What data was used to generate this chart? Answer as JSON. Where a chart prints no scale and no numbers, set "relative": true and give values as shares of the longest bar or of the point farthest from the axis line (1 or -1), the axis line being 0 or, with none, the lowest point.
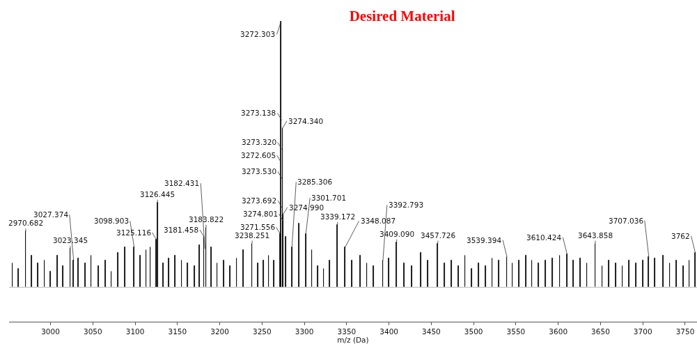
{
  "chart_data": {
    "type": "bar",
    "title": "Desired Material",
    "xlabel": "m/z (Da)",
    "relative": true,
    "color": "#000000",
    "x": [
      2955,
      2962,
      2970.682,
      2978,
      2985,
      2993,
      3000,
      3008,
      3015,
      3023.345,
      3027.374,
      3033,
      3041,
      3048,
      3057,
      3065,
      3072,
      3080,
      3088,
      3098.903,
      3106,
      3113,
      3118,
      3125.116,
      3126.445,
      3133,
      3140,
      3147,
      3155,
      3162,
      3170,
      3176,
      3181.458,
      3182.431,
      3183.822,
      3190,
      3197,
      3205,
      3212,
      3220,
      3228,
      3238.251,
      3245,
      3252,
      3258,
      3264,
      3271.556,
      3272.303,
      3272.605,
      3273.138,
      3273.32,
      3273.53,
      3273.692,
      3274.34,
      3274.801,
      3274.99,
      3278,
      3285.306,
      3294,
      3301.701,
      3309,
      3316,
      3323,
      3330,
      3339.172,
      3348.087,
      3356,
      3366,
      3374,
      3382,
      3392.793,
      3400,
      3409.09,
      3418,
      3427,
      3438,
      3446,
      3457.726,
      3466,
      3474,
      3482,
      3490,
      3498,
      3506,
      3514,
      3522,
      3530,
      3539.394,
      3546,
      3554,
      3562,
      3569,
      3577,
      3585,
      3593,
      3602,
      3610.424,
      3618,
      3626,
      3634,
      3643.858,
      3652,
      3660,
      3668,
      3676,
      3684,
      3692,
      3700,
      3707.036,
      3714,
      3724,
      3732,
      3740,
      3748,
      3755,
      3762
    ],
    "values": [
      0.09,
      0.07,
      0.21,
      0.12,
      0.09,
      0.1,
      0.06,
      0.12,
      0.08,
      0.145,
      0.1,
      0.11,
      0.09,
      0.12,
      0.08,
      0.1,
      0.06,
      0.13,
      0.15,
      0.15,
      0.12,
      0.14,
      0.15,
      0.18,
      0.32,
      0.09,
      0.11,
      0.12,
      0.1,
      0.09,
      0.08,
      0.16,
      0.19,
      null,
      0.225,
      0.15,
      0.09,
      0.1,
      0.08,
      0.11,
      0.14,
      0.165,
      0.09,
      0.1,
      0.12,
      0.1,
      0.2,
      1,
      null,
      null,
      null,
      null,
      null,
      0.6,
      null,
      0.275,
      0.19,
      0.15,
      0.24,
      0.2,
      0.14,
      0.08,
      0.07,
      0.1,
      0.235,
      0.15,
      0.1,
      0.12,
      0.09,
      0.08,
      0.1,
      0.11,
      0.17,
      0.09,
      0.08,
      0.13,
      0.1,
      0.165,
      0.09,
      0.1,
      0.08,
      0.12,
      0.07,
      0.09,
      0.08,
      0.11,
      0.1,
      0.115,
      0.09,
      0.1,
      0.12,
      0.1,
      0.09,
      0.1,
      0.11,
      0.12,
      0.125,
      0.1,
      0.11,
      0.09,
      0.165,
      0.08,
      0.1,
      0.09,
      0.08,
      0.1,
      0.09,
      0.1,
      0.115,
      0.11,
      0.12,
      0.09,
      0.1,
      0.08,
      0.1,
      0.13
    ],
    "annotations": [
      {
        "text": "2970.682",
        "x": 2970.682,
        "y": 0.21
      },
      {
        "text": "3023.345",
        "x": 3023.345,
        "y": 0.145
      },
      {
        "text": "3027.374",
        "x": 3027.374,
        "y": 0.1
      },
      {
        "text": "3098.903",
        "x": 3098.903,
        "y": 0.15
      },
      {
        "text": "3125.116",
        "x": 3125.116,
        "y": 0.18
      },
      {
        "text": "3126.445",
        "x": 3126.445,
        "y": 0.32
      },
      {
        "text": "3181.458",
        "x": 3181.458,
        "y": 0.19
      },
      {
        "text": "3182.431",
        "x": 3182.431,
        "y": 0.145
      },
      {
        "text": "3183.822",
        "x": 3183.822,
        "y": 0.225
      },
      {
        "text": "3238.251",
        "x": 3238.251,
        "y": 0.165
      },
      {
        "text": "3271.556",
        "x": 3271.556,
        "y": 0.2
      },
      {
        "text": "3272.303",
        "x": 3272.303,
        "y": 1
      },
      {
        "text": "3272.605",
        "x": 3272.605,
        "y": 0.47
      },
      {
        "text": "3273.138",
        "x": 3273.138,
        "y": 0.63
      },
      {
        "text": "3273.320",
        "x": 3273.32,
        "y": 0.52
      },
      {
        "text": "3273.530",
        "x": 3273.53,
        "y": 0.41
      },
      {
        "text": "3273.692",
        "x": 3273.692,
        "y": 0.3
      },
      {
        "text": "3274.340",
        "x": 3274.34,
        "y": 0.6
      },
      {
        "text": "3274.801",
        "x": 3274.801,
        "y": 0.25
      },
      {
        "text": "3274.990",
        "x": 3274.99,
        "y": 0.275
      },
      {
        "text": "3285.306",
        "x": 3285.306,
        "y": 0.15
      },
      {
        "text": "3301.701",
        "x": 3301.701,
        "y": 0.2
      },
      {
        "text": "3339.172",
        "x": 3339.172,
        "y": 0.235
      },
      {
        "text": "3348.087",
        "x": 3348.087,
        "y": 0.15
      },
      {
        "text": "3392.793",
        "x": 3392.793,
        "y": 0.1
      },
      {
        "text": "3409.090",
        "x": 3409.09,
        "y": 0.17
      },
      {
        "text": "3457.726",
        "x": 3457.726,
        "y": 0.165
      },
      {
        "text": "3539.394",
        "x": 3539.394,
        "y": 0.115
      },
      {
        "text": "3610.424",
        "x": 3610.424,
        "y": 0.125
      },
      {
        "text": "3643.858",
        "x": 3643.858,
        "y": 0.165
      },
      {
        "text": "3707.036",
        "x": 3707.036,
        "y": 0.115
      },
      {
        "text": "3762",
        "x": 3762,
        "y": 0.13
      }
    ],
    "xlim": [
      2951,
      3764
    ],
    "xticks": [
      3000,
      3050,
      3100,
      3150,
      3200,
      3250,
      3300,
      3350,
      3400,
      3450,
      3500,
      3550,
      3600,
      3650,
      3700,
      3750
    ],
    "grid": false
  }
}
